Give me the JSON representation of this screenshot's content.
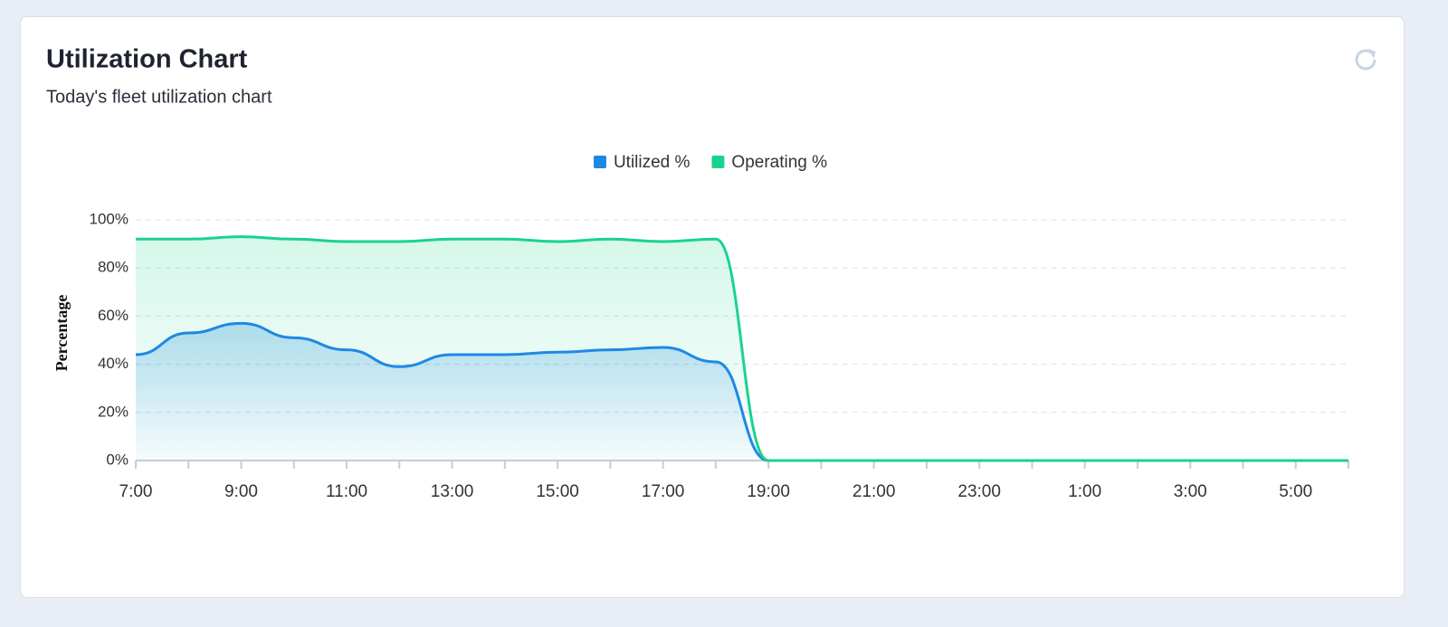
{
  "chart_data": {
    "type": "area",
    "title": "Utilization Chart",
    "subtitle": "Today's fleet utilization chart",
    "ylabel": "Percentage",
    "categories": [
      "7:00",
      null,
      "9:00",
      null,
      "11:00",
      null,
      "13:00",
      null,
      "15:00",
      null,
      "17:00",
      null,
      "19:00",
      null,
      "21:00",
      null,
      "23:00",
      null,
      "1:00",
      null,
      "3:00",
      null,
      "5:00",
      null
    ],
    "series": [
      {
        "name": "Utilized %",
        "color": "#1e88e5",
        "values": [
          44,
          53,
          57,
          51,
          46,
          39,
          44,
          44,
          45,
          46,
          47,
          41,
          0,
          0,
          0,
          0,
          0,
          0,
          0,
          0,
          0,
          0,
          0,
          0
        ]
      },
      {
        "name": "Operating %",
        "color": "#19d38d",
        "values": [
          92,
          92,
          93,
          92,
          91,
          91,
          92,
          92,
          91,
          92,
          91,
          92,
          0,
          0,
          0,
          0,
          0,
          0,
          0,
          0,
          0,
          0,
          0,
          0
        ]
      }
    ],
    "ylim": [
      0,
      100
    ],
    "yticks": [
      {
        "value": 0,
        "label": "0%"
      },
      {
        "value": 20,
        "label": "20%"
      },
      {
        "value": 40,
        "label": "40%"
      },
      {
        "value": 60,
        "label": "60%"
      },
      {
        "value": 80,
        "label": "80%"
      },
      {
        "value": 100,
        "label": "100%"
      }
    ],
    "grid": true,
    "legend": "top"
  }
}
